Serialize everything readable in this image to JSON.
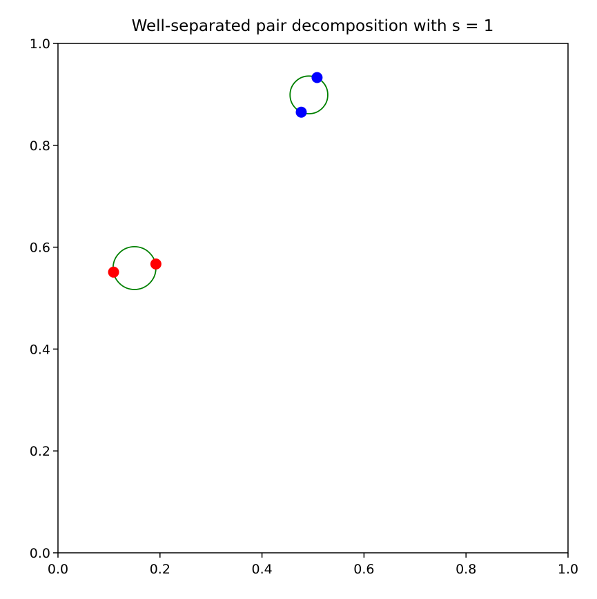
{
  "chart_data": {
    "type": "scatter",
    "title": "Well-separated pair decomposition with s = 1",
    "xlabel": "",
    "ylabel": "",
    "xlim": [
      0.0,
      1.0
    ],
    "ylim": [
      0.0,
      1.0
    ],
    "grid": false,
    "x_ticks": [
      {
        "value": 0.0,
        "label": "0.0"
      },
      {
        "value": 0.2,
        "label": "0.2"
      },
      {
        "value": 0.4,
        "label": "0.4"
      },
      {
        "value": 0.6,
        "label": "0.6"
      },
      {
        "value": 0.8,
        "label": "0.8"
      },
      {
        "value": 1.0,
        "label": "1.0"
      }
    ],
    "y_ticks": [
      {
        "value": 0.0,
        "label": "0.0"
      },
      {
        "value": 0.2,
        "label": "0.2"
      },
      {
        "value": 0.4,
        "label": "0.4"
      },
      {
        "value": 0.6,
        "label": "0.6"
      },
      {
        "value": 0.8,
        "label": "0.8"
      },
      {
        "value": 1.0,
        "label": "1.0"
      }
    ],
    "series": [
      {
        "color": "#ff0000",
        "points": [
          {
            "x": 0.109,
            "y": 0.551
          },
          {
            "x": 0.192,
            "y": 0.567
          }
        ]
      },
      {
        "color": "#0000ff",
        "points": [
          {
            "x": 0.477,
            "y": 0.865
          },
          {
            "x": 0.508,
            "y": 0.933
          }
        ]
      }
    ],
    "circles": [
      {
        "cx": 0.15,
        "cy": 0.559,
        "r": 0.042,
        "color": "#008000"
      },
      {
        "cx": 0.492,
        "cy": 0.899,
        "r": 0.037,
        "color": "#008000"
      }
    ]
  }
}
